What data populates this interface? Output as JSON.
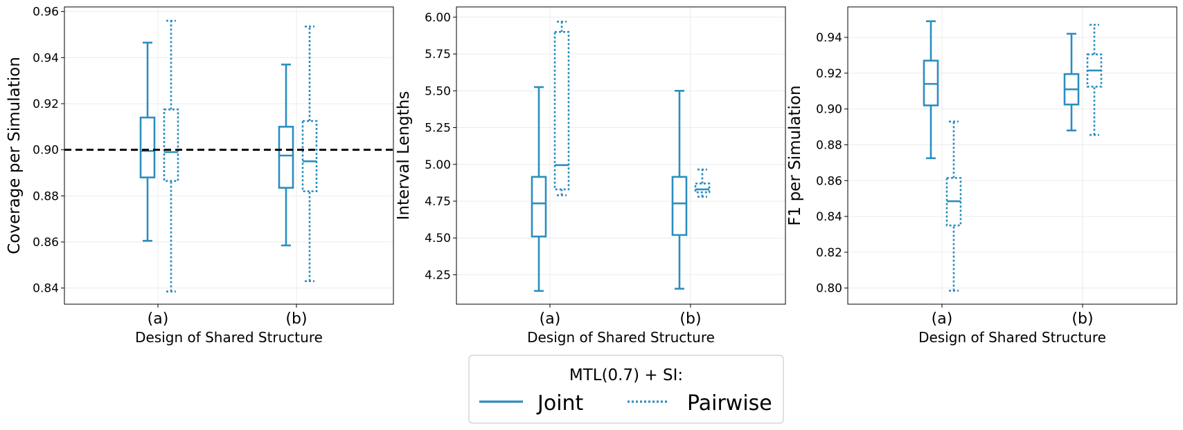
{
  "colors": {
    "series": "#2a8ebf",
    "reference": "#000000",
    "grid": "#ebebeb"
  },
  "legend": {
    "title": "MTL(0.7) + SI:",
    "entries": [
      {
        "label": "Joint",
        "style": "solid"
      },
      {
        "label": "Pairwise",
        "style": "dotted"
      }
    ]
  },
  "chart_data": [
    {
      "type": "box",
      "ylabel": "Coverage per Simulation",
      "xlabel": "Design of Shared Structure",
      "categories": [
        "(a)",
        "(b)"
      ],
      "ylim": [
        0.833,
        0.962
      ],
      "yticks": [
        0.84,
        0.86,
        0.88,
        0.9,
        0.92,
        0.94,
        0.96
      ],
      "ytick_labels": [
        "0.84",
        "0.86",
        "0.88",
        "0.90",
        "0.92",
        "0.94",
        "0.96"
      ],
      "reference_line": 0.9,
      "series": [
        {
          "name": "Joint",
          "style": "solid",
          "boxes": [
            {
              "whislo": 0.8605,
              "q1": 0.888,
              "med": 0.8995,
              "q3": 0.914,
              "whishi": 0.9465
            },
            {
              "whislo": 0.8585,
              "q1": 0.8835,
              "med": 0.8975,
              "q3": 0.91,
              "whishi": 0.937
            }
          ]
        },
        {
          "name": "Pairwise",
          "style": "dotted",
          "boxes": [
            {
              "whislo": 0.8385,
              "q1": 0.8865,
              "med": 0.899,
              "q3": 0.9175,
              "whishi": 0.956
            },
            {
              "whislo": 0.843,
              "q1": 0.882,
              "med": 0.895,
              "q3": 0.9125,
              "whishi": 0.9535
            }
          ]
        }
      ]
    },
    {
      "type": "box",
      "ylabel": "Interval Lengths",
      "xlabel": "Design of Shared Structure",
      "categories": [
        "(a)",
        "(b)"
      ],
      "ylim": [
        4.05,
        6.07
      ],
      "yticks": [
        4.25,
        4.5,
        4.75,
        5.0,
        5.25,
        5.5,
        5.75,
        6.0
      ],
      "ytick_labels": [
        "4.25",
        "4.50",
        "4.75",
        "5.00",
        "5.25",
        "5.50",
        "5.75",
        "6.00"
      ],
      "series": [
        {
          "name": "Joint",
          "style": "solid",
          "boxes": [
            {
              "whislo": 4.14,
              "q1": 4.51,
              "med": 4.735,
              "q3": 4.915,
              "whishi": 5.525
            },
            {
              "whislo": 4.155,
              "q1": 4.52,
              "med": 4.735,
              "q3": 4.915,
              "whishi": 5.5
            }
          ]
        },
        {
          "name": "Pairwise",
          "style": "dotted",
          "boxes": [
            {
              "whislo": 4.79,
              "q1": 4.83,
              "med": 4.995,
              "q3": 5.9,
              "whishi": 5.97
            },
            {
              "whislo": 4.78,
              "q1": 4.81,
              "med": 4.83,
              "q3": 4.87,
              "whishi": 4.965
            }
          ]
        }
      ]
    },
    {
      "type": "box",
      "ylabel": "F1 per Simulation",
      "xlabel": "Design of Shared Structure",
      "categories": [
        "(a)",
        "(b)"
      ],
      "ylim": [
        0.791,
        0.957
      ],
      "yticks": [
        0.8,
        0.82,
        0.84,
        0.86,
        0.88,
        0.9,
        0.92,
        0.94
      ],
      "ytick_labels": [
        "0.80",
        "0.82",
        "0.84",
        "0.86",
        "0.88",
        "0.90",
        "0.92",
        "0.94"
      ],
      "series": [
        {
          "name": "Joint",
          "style": "solid",
          "boxes": [
            {
              "whislo": 0.8725,
              "q1": 0.902,
              "med": 0.914,
              "q3": 0.927,
              "whishi": 0.949
            },
            {
              "whislo": 0.888,
              "q1": 0.9025,
              "med": 0.911,
              "q3": 0.9195,
              "whishi": 0.942
            }
          ]
        },
        {
          "name": "Pairwise",
          "style": "dotted",
          "boxes": [
            {
              "whislo": 0.7985,
              "q1": 0.835,
              "med": 0.8485,
              "q3": 0.8615,
              "whishi": 0.893
            },
            {
              "whislo": 0.8855,
              "q1": 0.9125,
              "med": 0.9215,
              "q3": 0.9305,
              "whishi": 0.947
            }
          ]
        }
      ]
    }
  ]
}
